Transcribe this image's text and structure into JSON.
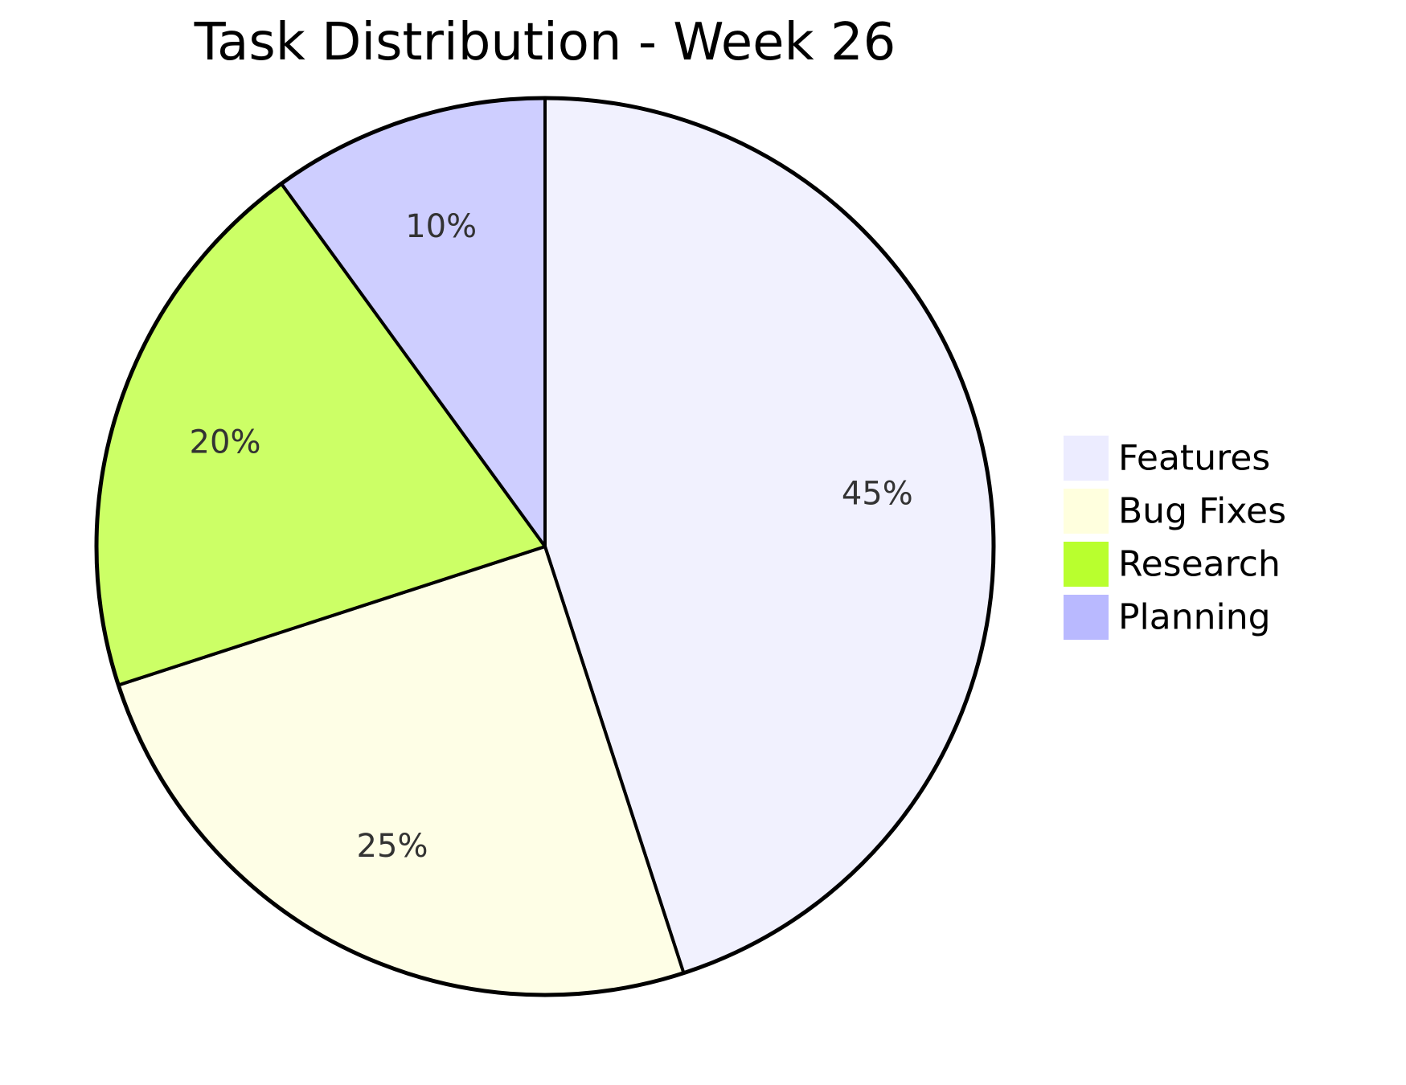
{
  "chart_data": {
    "type": "pie",
    "title": "Task Distribution - Week 26",
    "start_angle": "top",
    "direction": "clockwise",
    "legend_position": "right",
    "slices": [
      {
        "label": "Features",
        "value": 45,
        "display": "45%",
        "color": "#f1f1fe",
        "legend_color": "#ececff"
      },
      {
        "label": "Bug Fixes",
        "value": 25,
        "display": "25%",
        "color": "#fefee6",
        "legend_color": "#ffffde"
      },
      {
        "label": "Research",
        "value": 20,
        "display": "20%",
        "color": "#ccff66",
        "legend_color": "#b9ff2e"
      },
      {
        "label": "Planning",
        "value": 10,
        "display": "10%",
        "color": "#ceceff",
        "legend_color": "#b9b9ff"
      }
    ]
  }
}
